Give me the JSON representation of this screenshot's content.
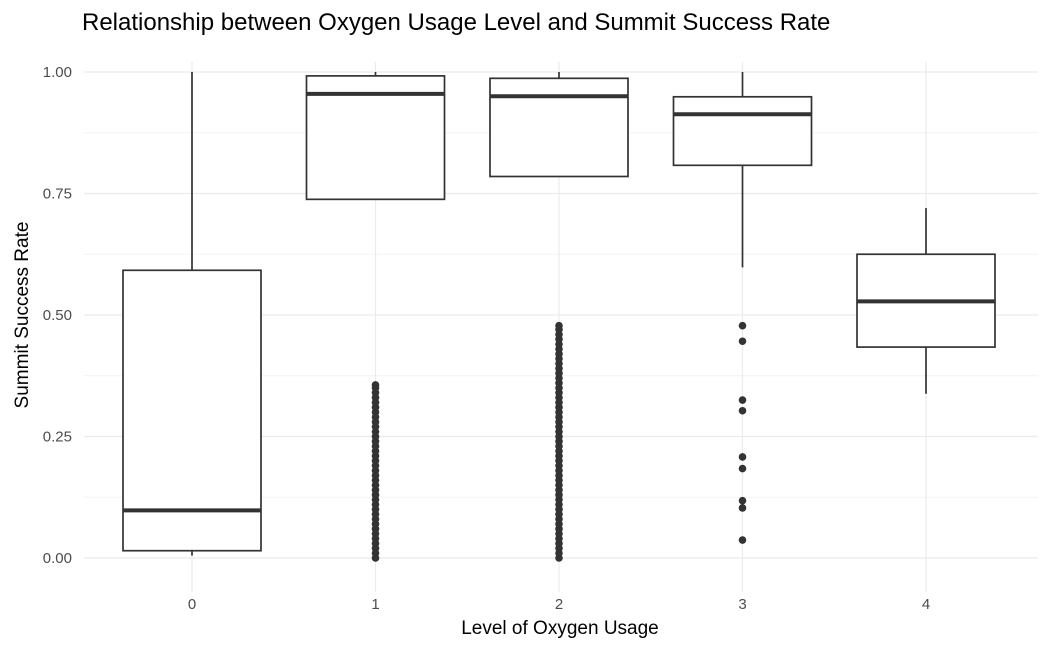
{
  "chart_data": {
    "type": "boxplot",
    "title": "Relationship between Oxygen Usage Level and Summit Success Rate",
    "xlabel": "Level of Oxygen Usage",
    "ylabel": "Summit Success Rate",
    "ylim": [
      -0.07,
      1.0
    ],
    "categories": [
      "0",
      "1",
      "2",
      "3",
      "4"
    ],
    "y_ticks": [
      0.0,
      0.25,
      0.5,
      0.75,
      1.0
    ],
    "y_tick_labels": [
      "0.00",
      "0.25",
      "0.50",
      "0.75",
      "1.00"
    ],
    "grid": true,
    "legend": "none",
    "colors": {
      "box_stroke": "#333333",
      "grid_major": "#ebebeb",
      "grid_minor": "#f4f4f4",
      "tick_text": "#4d4d4d"
    },
    "boxes": [
      {
        "category": "0",
        "whisker_low": 0.005,
        "q1": 0.015,
        "median": 0.098,
        "q3": 0.592,
        "whisker_high": 1.0,
        "outliers": []
      },
      {
        "category": "1",
        "whisker_low": 0.738,
        "q1": 0.738,
        "median": 0.955,
        "q3": 0.992,
        "whisker_high": 1.0,
        "outliers": [
          0.0,
          0.01,
          0.02,
          0.03,
          0.04,
          0.05,
          0.06,
          0.07,
          0.08,
          0.09,
          0.1,
          0.11,
          0.12,
          0.13,
          0.14,
          0.15,
          0.16,
          0.17,
          0.18,
          0.19,
          0.2,
          0.21,
          0.22,
          0.23,
          0.24,
          0.25,
          0.26,
          0.27,
          0.28,
          0.29,
          0.3,
          0.31,
          0.32,
          0.33,
          0.34,
          0.35,
          0.356
        ]
      },
      {
        "category": "2",
        "whisker_low": 0.785,
        "q1": 0.785,
        "median": 0.95,
        "q3": 0.987,
        "whisker_high": 1.0,
        "outliers": [
          0.0,
          0.01,
          0.02,
          0.03,
          0.04,
          0.05,
          0.06,
          0.07,
          0.08,
          0.09,
          0.1,
          0.11,
          0.12,
          0.13,
          0.14,
          0.15,
          0.16,
          0.17,
          0.18,
          0.19,
          0.2,
          0.21,
          0.22,
          0.23,
          0.24,
          0.25,
          0.26,
          0.27,
          0.28,
          0.29,
          0.3,
          0.31,
          0.32,
          0.33,
          0.34,
          0.35,
          0.36,
          0.37,
          0.38,
          0.39,
          0.4,
          0.41,
          0.42,
          0.43,
          0.44,
          0.45,
          0.46,
          0.47,
          0.478
        ]
      },
      {
        "category": "3",
        "whisker_low": 0.598,
        "q1": 0.808,
        "median": 0.913,
        "q3": 0.949,
        "whisker_high": 1.0,
        "outliers": [
          0.478,
          0.446,
          0.325,
          0.303,
          0.208,
          0.184,
          0.118,
          0.103,
          0.037
        ]
      },
      {
        "category": "4",
        "whisker_low": 0.338,
        "q1": 0.434,
        "median": 0.528,
        "q3": 0.625,
        "whisker_high": 0.72,
        "outliers": []
      }
    ]
  }
}
